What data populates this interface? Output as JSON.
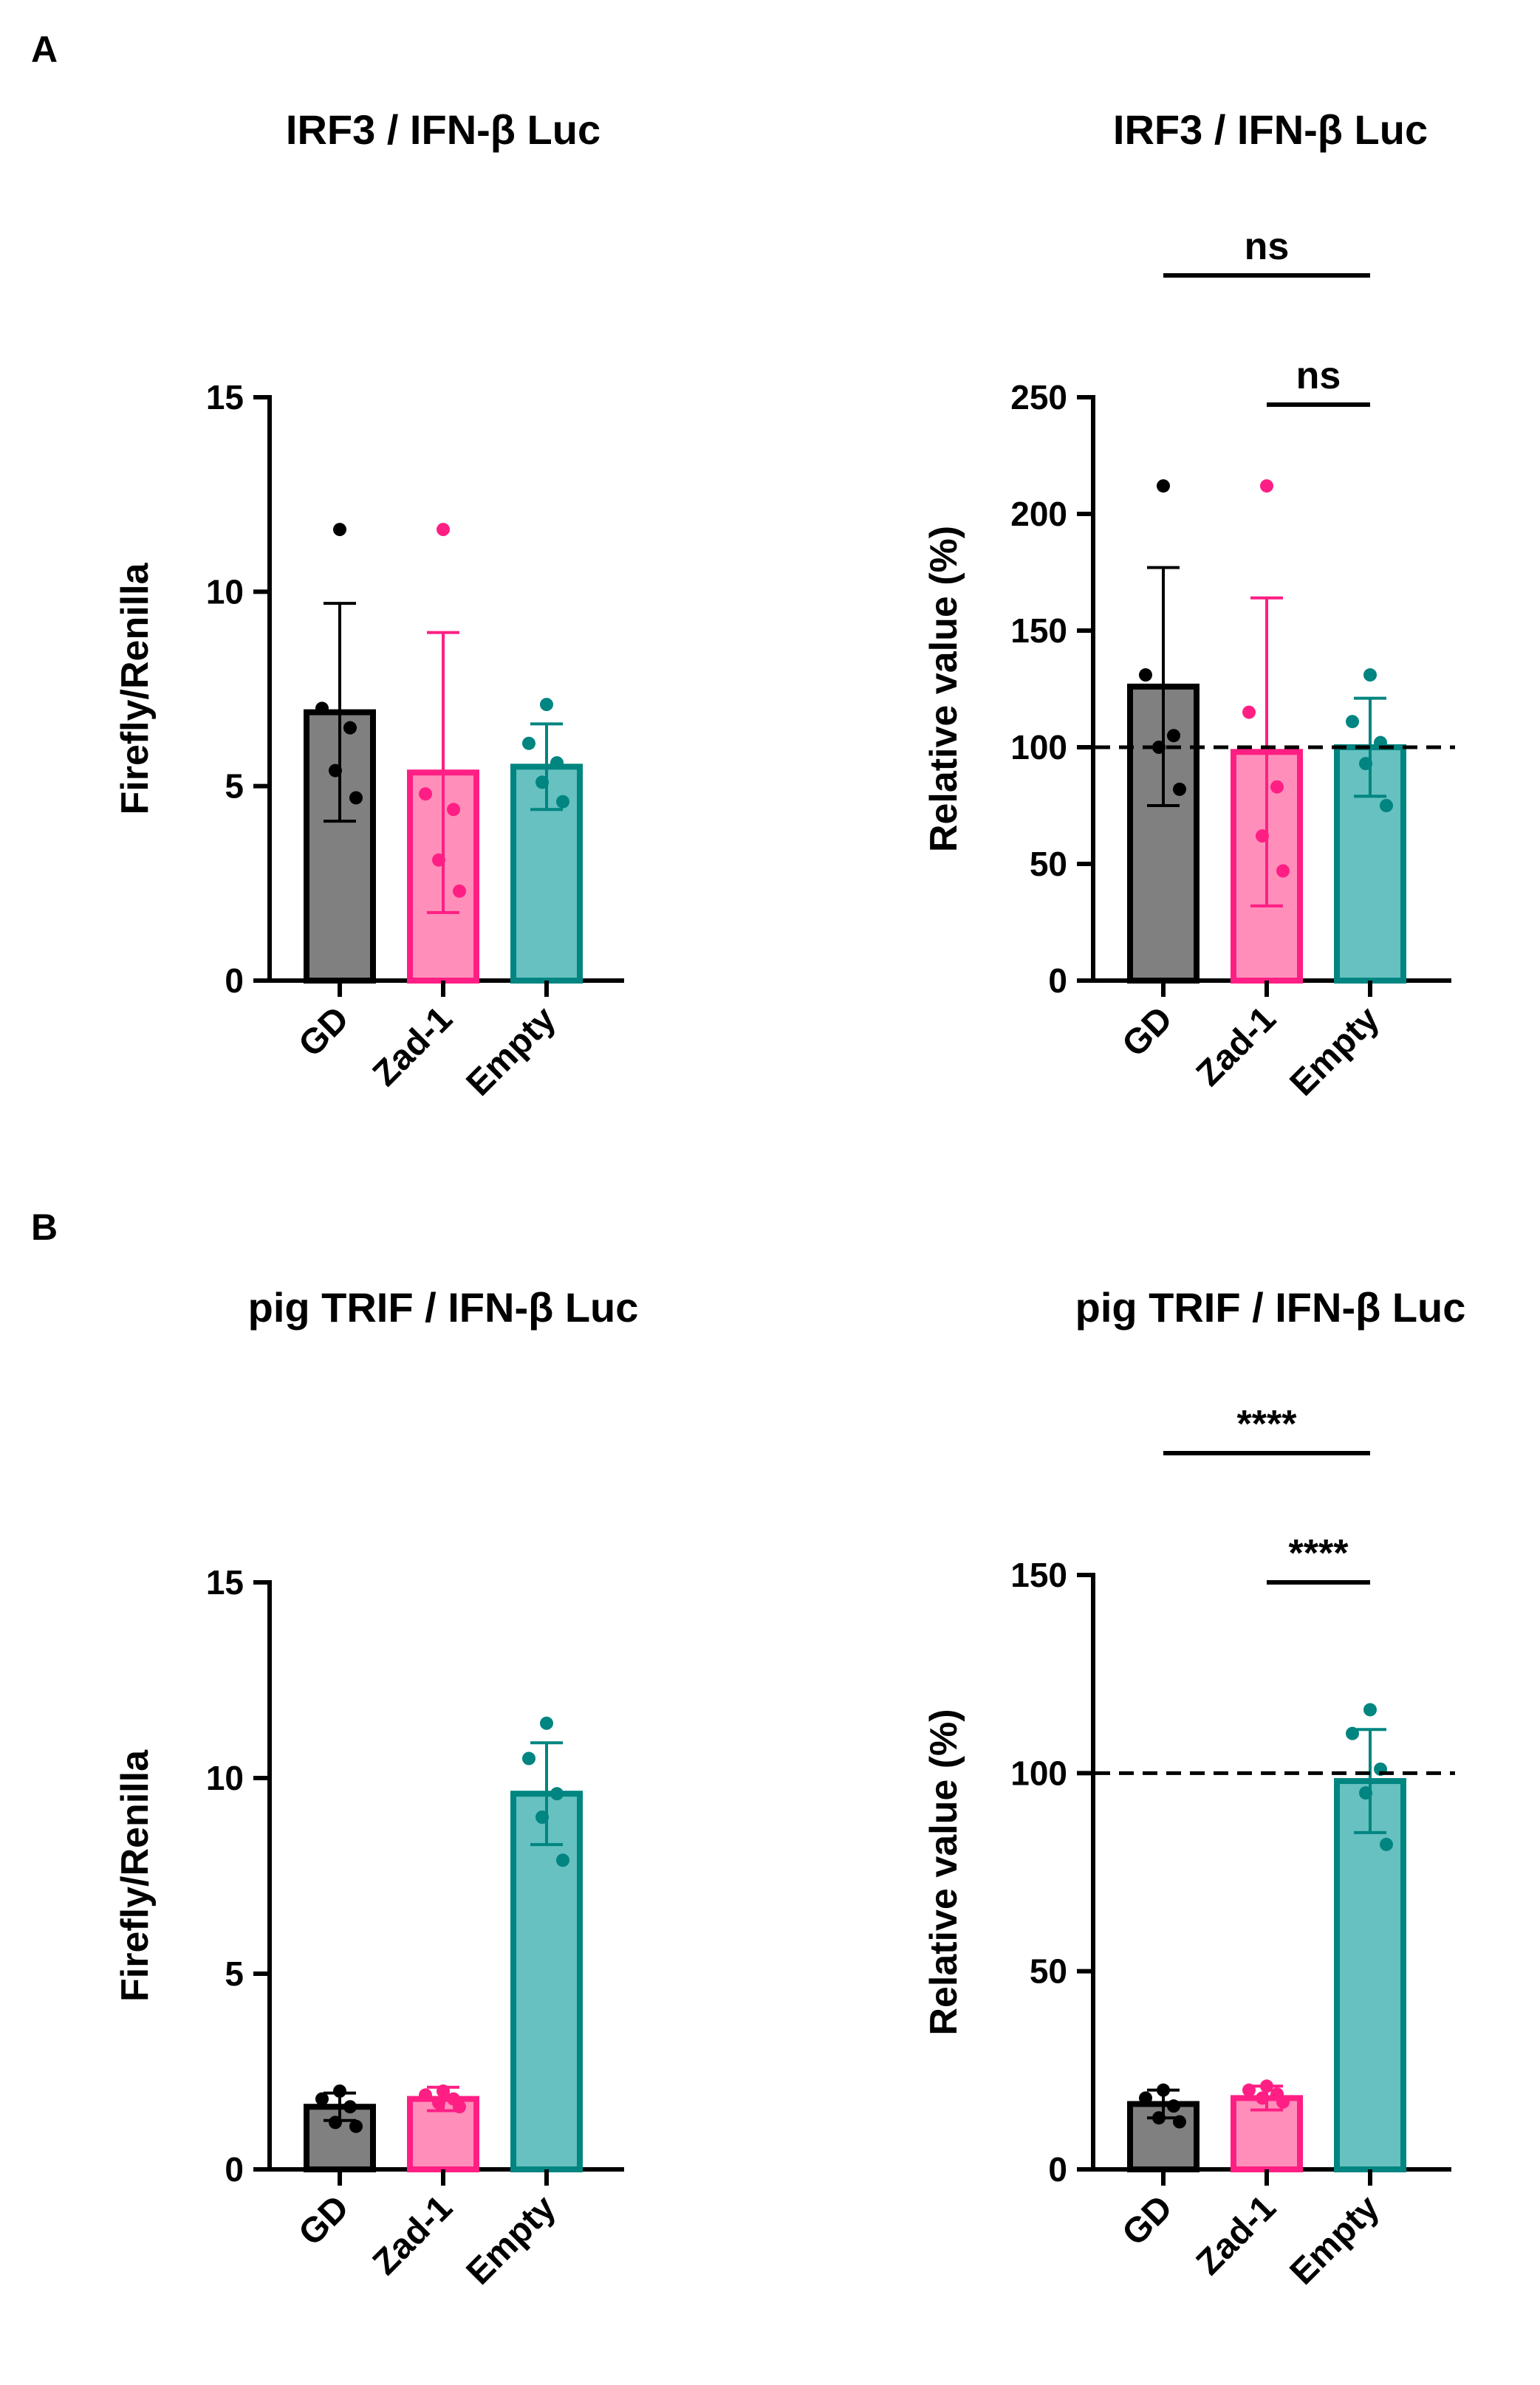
{
  "panels": {
    "a": "A",
    "b": "B"
  },
  "colors": {
    "GD": {
      "fill": "#808080",
      "stroke": "#000000"
    },
    "Zad-1": {
      "fill": "#ff8fba",
      "stroke": "#ff1f84"
    },
    "Empty": {
      "fill": "#66c1c0",
      "stroke": "#008580"
    }
  },
  "chart_data": [
    {
      "type": "bar",
      "title": "IRF3 / IFN-β Luc",
      "ylabel": "Firefly/Renilla",
      "categories": [
        "GD",
        "Zad-1",
        "Empty"
      ],
      "ylim": [
        0,
        15
      ],
      "yticks": [
        0,
        5,
        10,
        15
      ],
      "values": [
        6.9,
        5.35,
        5.5
      ],
      "errors": [
        2.8,
        3.6,
        1.1
      ],
      "points": [
        [
          11.6,
          7.0,
          6.5,
          5.4,
          4.7
        ],
        [
          11.6,
          4.8,
          4.4,
          3.1,
          2.3
        ],
        [
          7.1,
          6.1,
          5.6,
          5.1,
          4.6
        ]
      ],
      "reference_line": null,
      "significance": []
    },
    {
      "type": "bar",
      "title": "IRF3 / IFN-β Luc",
      "ylabel": "Relative value (%)",
      "categories": [
        "GD",
        "Zad-1",
        "Empty"
      ],
      "ylim": [
        0,
        250
      ],
      "yticks": [
        0,
        50,
        100,
        150,
        200,
        250
      ],
      "values": [
        126,
        98,
        100
      ],
      "errors": [
        51,
        66,
        21
      ],
      "points": [
        [
          212,
          131,
          105,
          100,
          82
        ],
        [
          212,
          115,
          83,
          62,
          47
        ],
        [
          131,
          111,
          102,
          93,
          75
        ]
      ],
      "reference_line": 100,
      "significance": [
        {
          "from": 0,
          "to": 2,
          "label": "ns",
          "level": 0
        },
        {
          "from": 1,
          "to": 2,
          "label": "ns",
          "level": 1
        }
      ]
    },
    {
      "type": "bar",
      "title": "pig TRIF / IFN-β Luc",
      "ylabel": "Firefly/Renilla",
      "categories": [
        "GD",
        "Zad-1",
        "Empty"
      ],
      "ylim": [
        0,
        15
      ],
      "yticks": [
        0,
        5,
        10,
        15
      ],
      "values": [
        1.6,
        1.8,
        9.6
      ],
      "errors": [
        0.35,
        0.3,
        1.3
      ],
      "points": [
        [
          2.0,
          1.8,
          1.6,
          1.2,
          1.1
        ],
        [
          2.0,
          1.9,
          1.8,
          1.7,
          1.6
        ],
        [
          11.4,
          10.5,
          9.6,
          9.0,
          7.9
        ]
      ],
      "reference_line": null,
      "significance": []
    },
    {
      "type": "bar",
      "title": "pig TRIF / IFN-β Luc",
      "ylabel": "Relative value (%)",
      "categories": [
        "GD",
        "Zad-1",
        "Empty"
      ],
      "ylim": [
        0,
        150
      ],
      "yticks": [
        0,
        50,
        100,
        150
      ],
      "values": [
        16.5,
        18,
        98
      ],
      "errors": [
        3.5,
        3,
        13
      ],
      "points": [
        [
          20,
          18,
          16,
          13,
          12
        ],
        [
          21,
          20,
          19,
          18,
          17
        ],
        [
          116,
          110,
          101,
          95,
          82
        ]
      ],
      "reference_line": 100,
      "significance": [
        {
          "from": 0,
          "to": 2,
          "label": "****",
          "level": 0
        },
        {
          "from": 1,
          "to": 2,
          "label": "****",
          "level": 1
        }
      ]
    }
  ]
}
